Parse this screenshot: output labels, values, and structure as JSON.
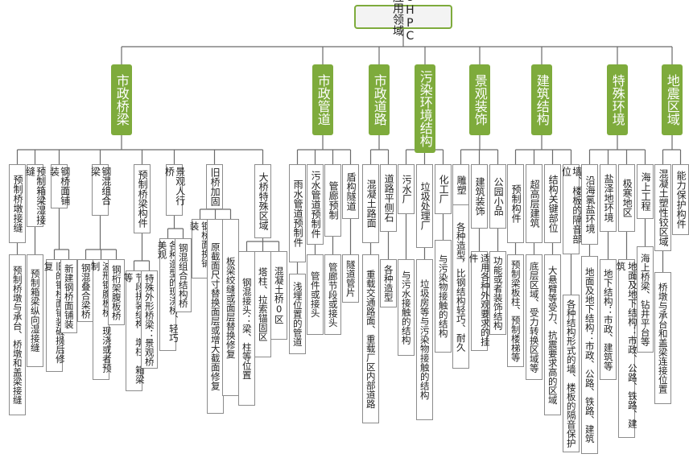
{
  "root": "UHPC应用领域",
  "categories": [
    {
      "label": "市政桥梁",
      "children": [
        {
          "label": "预制桥墩接缝",
          "desc": "预制桥墩与承台、桥墩和盖梁接缝"
        },
        {
          "label": "预制箱梁湿接缝",
          "desc": "预制箱梁纵向湿接缝"
        },
        {
          "label": "钢桥面铺装",
          "desc": [
            "旧的钢桥面铺装破损后修复",
            "新建钢桥面铺装"
          ]
        },
        {
          "label": "钢混组合梁",
          "desc": [
            "钢混叠合梁桥",
            "波形钢腹板桥：现浇或者预制",
            "钢桁架腹板桥"
          ]
        },
        {
          "label": "预制桥梁构件",
          "desc": [
            "节段拼装结构：墩柱、箱梁等",
            "特殊外形桥梁：景观桥"
          ]
        },
        {
          "label": "景观人行桥",
          "desc": [
            "各种造型的现浇桥、轻巧美观",
            "钢混组合结构桥"
          ]
        },
        {
          "label": "旧桥加固",
          "desc": [
            "钢桥面换铺装",
            "原截面尺寸替换面层或增大截面修复",
            "板梁绞缝或面层替换修复"
          ]
        },
        {
          "label": "大桥特殊区域",
          "desc": [
            "钢混接头：梁、柱等位置",
            "塔柱、拉索锚固区",
            "混凝土桥0区"
          ]
        }
      ]
    },
    {
      "label": "市政管道",
      "children": [
        {
          "label": "雨水管道预制件",
          "desc": "浅埋位置的管道"
        },
        {
          "label": "污水管道预制件",
          "desc": "管件或接头"
        },
        {
          "label": "管廊预制",
          "desc": "管廊节段或接头"
        },
        {
          "label": "盾构隧道",
          "desc": "隧道管片"
        }
      ]
    },
    {
      "label": "市政道路",
      "children": [
        {
          "label": "混凝土路面",
          "desc": "重载交通路面、重载厂区内部道路"
        },
        {
          "label": "道路平侧石",
          "desc": "各种造型"
        }
      ]
    },
    {
      "label": "污染环境结构",
      "children": [
        {
          "label": "污水厂",
          "desc": "与污水接触的结构"
        },
        {
          "label": "垃圾处理厂",
          "desc": "垃圾房等与污染物接触的结构"
        },
        {
          "label": "化工厂",
          "desc": "与污染物接触的结构"
        }
      ]
    },
    {
      "label": "景观装饰",
      "children": [
        {
          "label": "雕塑",
          "desc": "各种造型，比钢结构轻巧、耐久"
        },
        {
          "label": "建筑装饰",
          "desc": "适用各种外观要求的挂件"
        },
        {
          "label": "公园小品",
          "desc": "功能或者装饰结构"
        }
      ]
    },
    {
      "label": "建筑结构",
      "children": [
        {
          "label": "预制构件",
          "desc": "预制梁板柱、预制楼梯等"
        },
        {
          "label": "超高层建筑",
          "desc": "底层区域、受力转换区域等"
        },
        {
          "label": "结构关键部位",
          "desc": "大悬臂等受力、抗震要求高的区域"
        },
        {
          "label": "墙、楼板的隔音部位",
          "desc": "各种结构形式的墙、楼板的隔音保护"
        }
      ]
    },
    {
      "label": "特殊环境",
      "children": [
        {
          "label": "沿海氯盐环境",
          "desc": "地面及地下结构：市政、公路、铁路、建筑"
        },
        {
          "label": "盐泽地环境",
          "desc": "地下结构：市政、建筑等"
        },
        {
          "label": "极寒地区",
          "desc": "地面及地下结构：市政、公路、铁路、建筑"
        },
        {
          "label": "海上工程",
          "desc": "海上桥梁、钻井平台等"
        }
      ]
    },
    {
      "label": "地震区域",
      "children": [
        {
          "label": "混凝土塑性铰区域",
          "desc": "桥墩与承台和盖梁连接位置"
        },
        {
          "label": "能力保护构件",
          "desc": null
        }
      ]
    }
  ]
}
